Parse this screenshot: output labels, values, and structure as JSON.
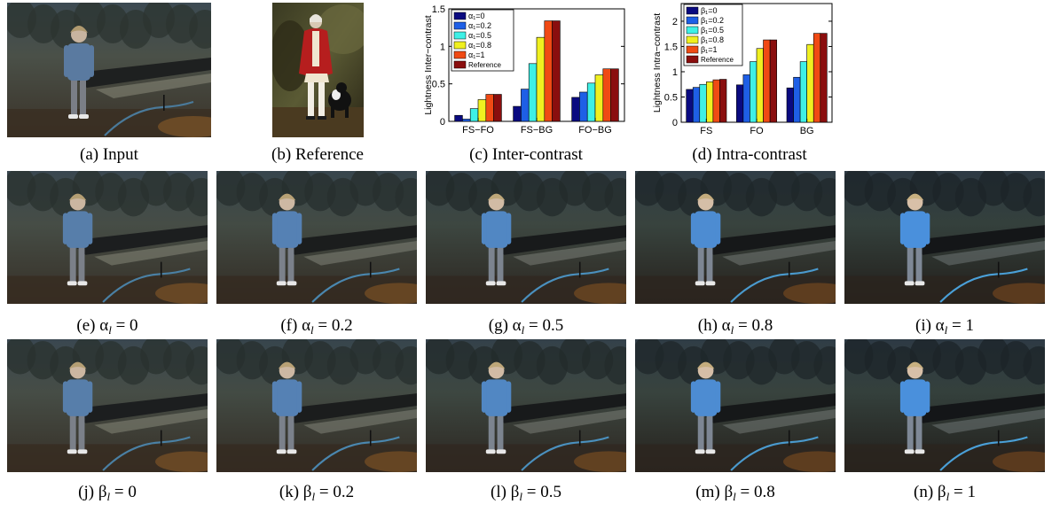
{
  "top_row": [
    {
      "id": "a",
      "caption": "(a) Input"
    },
    {
      "id": "b",
      "caption": "(b) Reference"
    },
    {
      "id": "c",
      "caption": "(c) Inter-contrast"
    },
    {
      "id": "d",
      "caption": "(d) Intra-contrast"
    }
  ],
  "row_alpha": [
    {
      "caption_prefix": "(e) α",
      "sub": "l",
      "caption_suffix": " = 0",
      "tone": 0.0
    },
    {
      "caption_prefix": "(f) α",
      "sub": "l",
      "caption_suffix": " = 0.2",
      "tone": 0.2
    },
    {
      "caption_prefix": "(g) α",
      "sub": "l",
      "caption_suffix": " = 0.5",
      "tone": 0.5
    },
    {
      "caption_prefix": "(h) α",
      "sub": "l",
      "caption_suffix": " = 0.8",
      "tone": 0.8
    },
    {
      "caption_prefix": "(i) α",
      "sub": "l",
      "caption_suffix": " = 1",
      "tone": 1.0
    }
  ],
  "row_beta": [
    {
      "caption_prefix": "(j) β",
      "sub": "l",
      "caption_suffix": " = 0",
      "tone": 0.0
    },
    {
      "caption_prefix": "(k) β",
      "sub": "l",
      "caption_suffix": " = 0.2",
      "tone": 0.2
    },
    {
      "caption_prefix": "(l) β",
      "sub": "l",
      "caption_suffix": " = 0.5",
      "tone": 0.5
    },
    {
      "caption_prefix": "(m) β",
      "sub": "l",
      "caption_suffix": " = 0.8",
      "tone": 0.8
    },
    {
      "caption_prefix": "(n) β",
      "sub": "l",
      "caption_suffix": " = 1",
      "tone": 1.0
    }
  ],
  "chart_data": [
    {
      "type": "bar",
      "ylabel": "Lightness Inter−contrast",
      "ylim": [
        0,
        1.5
      ],
      "yticks": [
        0,
        0.5,
        1,
        1.5
      ],
      "categories": [
        "FS−FO",
        "FS−BG",
        "FO−BG"
      ],
      "legend_placement": "top-left",
      "series": [
        {
          "name": "α₁=0",
          "values": [
            0.08,
            0.2,
            0.32
          ],
          "color": "#0a0a80"
        },
        {
          "name": "α₁=0.2",
          "values": [
            0.03,
            0.43,
            0.39
          ],
          "color": "#1e5fe6"
        },
        {
          "name": "α₁=0.5",
          "values": [
            0.17,
            0.77,
            0.51
          ],
          "color": "#3ef0e6"
        },
        {
          "name": "α₁=0.8",
          "values": [
            0.29,
            1.12,
            0.62
          ],
          "color": "#f0f020"
        },
        {
          "name": "α₁=1",
          "values": [
            0.36,
            1.34,
            0.7
          ],
          "color": "#f04a14"
        },
        {
          "name": "Reference",
          "values": [
            0.36,
            1.34,
            0.7
          ],
          "color": "#8a0e0e"
        }
      ]
    },
    {
      "type": "bar",
      "ylabel": "Lightness Intra−contrast",
      "ylim": [
        0,
        2.35
      ],
      "yticks": [
        0,
        0.5,
        1,
        1.5,
        2
      ],
      "categories": [
        "FS",
        "FO",
        "BG"
      ],
      "legend_placement": "top-left",
      "series": [
        {
          "name": "β₁=0",
          "values": [
            0.65,
            0.74,
            0.68
          ],
          "color": "#0a0a80"
        },
        {
          "name": "β₁=0.2",
          "values": [
            0.69,
            0.94,
            0.89
          ],
          "color": "#1e5fe6"
        },
        {
          "name": "β₁=0.5",
          "values": [
            0.75,
            1.2,
            1.2
          ],
          "color": "#3ef0e6"
        },
        {
          "name": "β₁=0.8",
          "values": [
            0.8,
            1.46,
            1.54
          ],
          "color": "#f0f020"
        },
        {
          "name": "β₁=1",
          "values": [
            0.84,
            1.63,
            1.76
          ],
          "color": "#f04a14"
        },
        {
          "name": "Reference",
          "values": [
            0.85,
            1.63,
            1.76
          ],
          "color": "#8a0e0e"
        }
      ]
    }
  ]
}
